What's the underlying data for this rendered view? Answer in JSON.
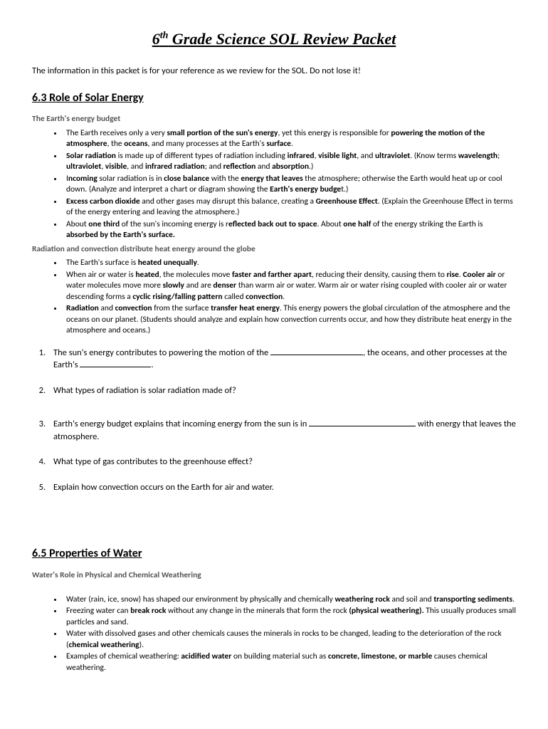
{
  "title_pre": "6",
  "title_sup": "th",
  "title_post": " Grade Science SOL Review Packet",
  "intro": "The information in this packet is for your reference as we review for the SOL.  Do not lose it!",
  "sec63": {
    "header": "6.3 Role of Solar Energy",
    "sub1": "The Earth's energy budget",
    "b1": [
      "The Earth receives only a very <b>small portion of the sun's energy</b>, yet this energy is responsible for <b>powering the motion of the atmosphere</b>, the <b>oceans</b>, and many processes at the Earth's <b>surface</b>.",
      "<b>Solar radiation</b> is made up of different types of radiation including <b>infrared</b>, <b>visible light</b>, and <b>ultraviolet</b>. (Know terms <b>wavelength</b>; <b>ultraviolet</b>, <b>visible</b>, and <b>infrared radiation</b>; and <b>reflection</b> and <b>absorption</b>.)",
      "I<b>ncoming</b> solar radiation is in <b>close balance</b> with the <b>energy that leaves</b> the atmosphere; otherwise the Earth would heat up or cool down. (Analyze and interpret a chart or diagram showing the <b>Earth's energy budge</b>t.)",
      "<b>Excess carbon dioxide</b> and other gases may disrupt this balance, creating a <b>Greenhouse Effect</b>. (Explain the Greenhouse Effect in terms of the energy entering and leaving the atmosphere.)",
      "About <b>one third</b> of the sun's incoming energy is r<b>eflected back out to space</b>. About <b>one half</b> of the energy striking the Earth is <b>absorbed by the Earth's surface.</b>"
    ],
    "sub2": "Radiation and convection distribute heat energy around the globe",
    "b2": [
      "The Earth's surface is <b>heated unequally</b>.",
      "When air or water is <b>heated</b>, the molecules move <b>faster and farther apart</b>, reducing their density, causing them to <b>rise</b>. <b>Cooler air</b> or water molecules move more <b>slowly</b> and are <b>denser</b> than warm air or water. Warm air or water rising coupled with cooler air or water descending forms a <b>cyclic rising/falling pattern</b> called <b>convection</b>.",
      "<b>Radiation</b> and <b>convection</b> from the surface <b>transfer heat energy</b>. This energy powers the global circulation of the atmosphere and the oceans on our planet. (Students should analyze and explain how convection currents occur, and how they distribute heat energy in the atmosphere and oceans.)"
    ],
    "q": [
      {
        "pre": "The sun's energy contributes to powering the motion of the ",
        "blank1": 130,
        "mid": ", the oceans, and other processes at the Earth's ",
        "blank2": 100,
        "post": "."
      },
      {
        "pre": "What types of radiation is solar radiation made of?"
      },
      {
        "pre": "Earth's energy budget explains that incoming energy from the sun is in ",
        "blank1": 150,
        "post": " with energy that leaves the atmosphere."
      },
      {
        "pre": "What type of gas contributes to the greenhouse effect?"
      },
      {
        "pre": "Explain how convection occurs on the Earth for air and water."
      }
    ]
  },
  "sec65": {
    "header": "6.5 Properties of Water",
    "sub1": "Water's Role in Physical and Chemical Weathering",
    "b1": [
      "Water (rain, ice, snow) has shaped our environment by physically and chemically <b>weathering rock</b> and soil and <b>transporting sediments</b>.",
      "Freezing water can <b>break rock</b> without any change in the minerals that form the rock <b>(physical weathering).</b> This usually produces small particles and sand.",
      "Water with dissolved gases and other chemicals causes the minerals in rocks to be changed, leading to the deterioration of the rock (<b>chemical weathering</b>).",
      "Examples of chemical weathering: <b>acidified water</b> on building material such as <b>concrete, limestone, or marble</b> causes chemical weathering."
    ]
  }
}
